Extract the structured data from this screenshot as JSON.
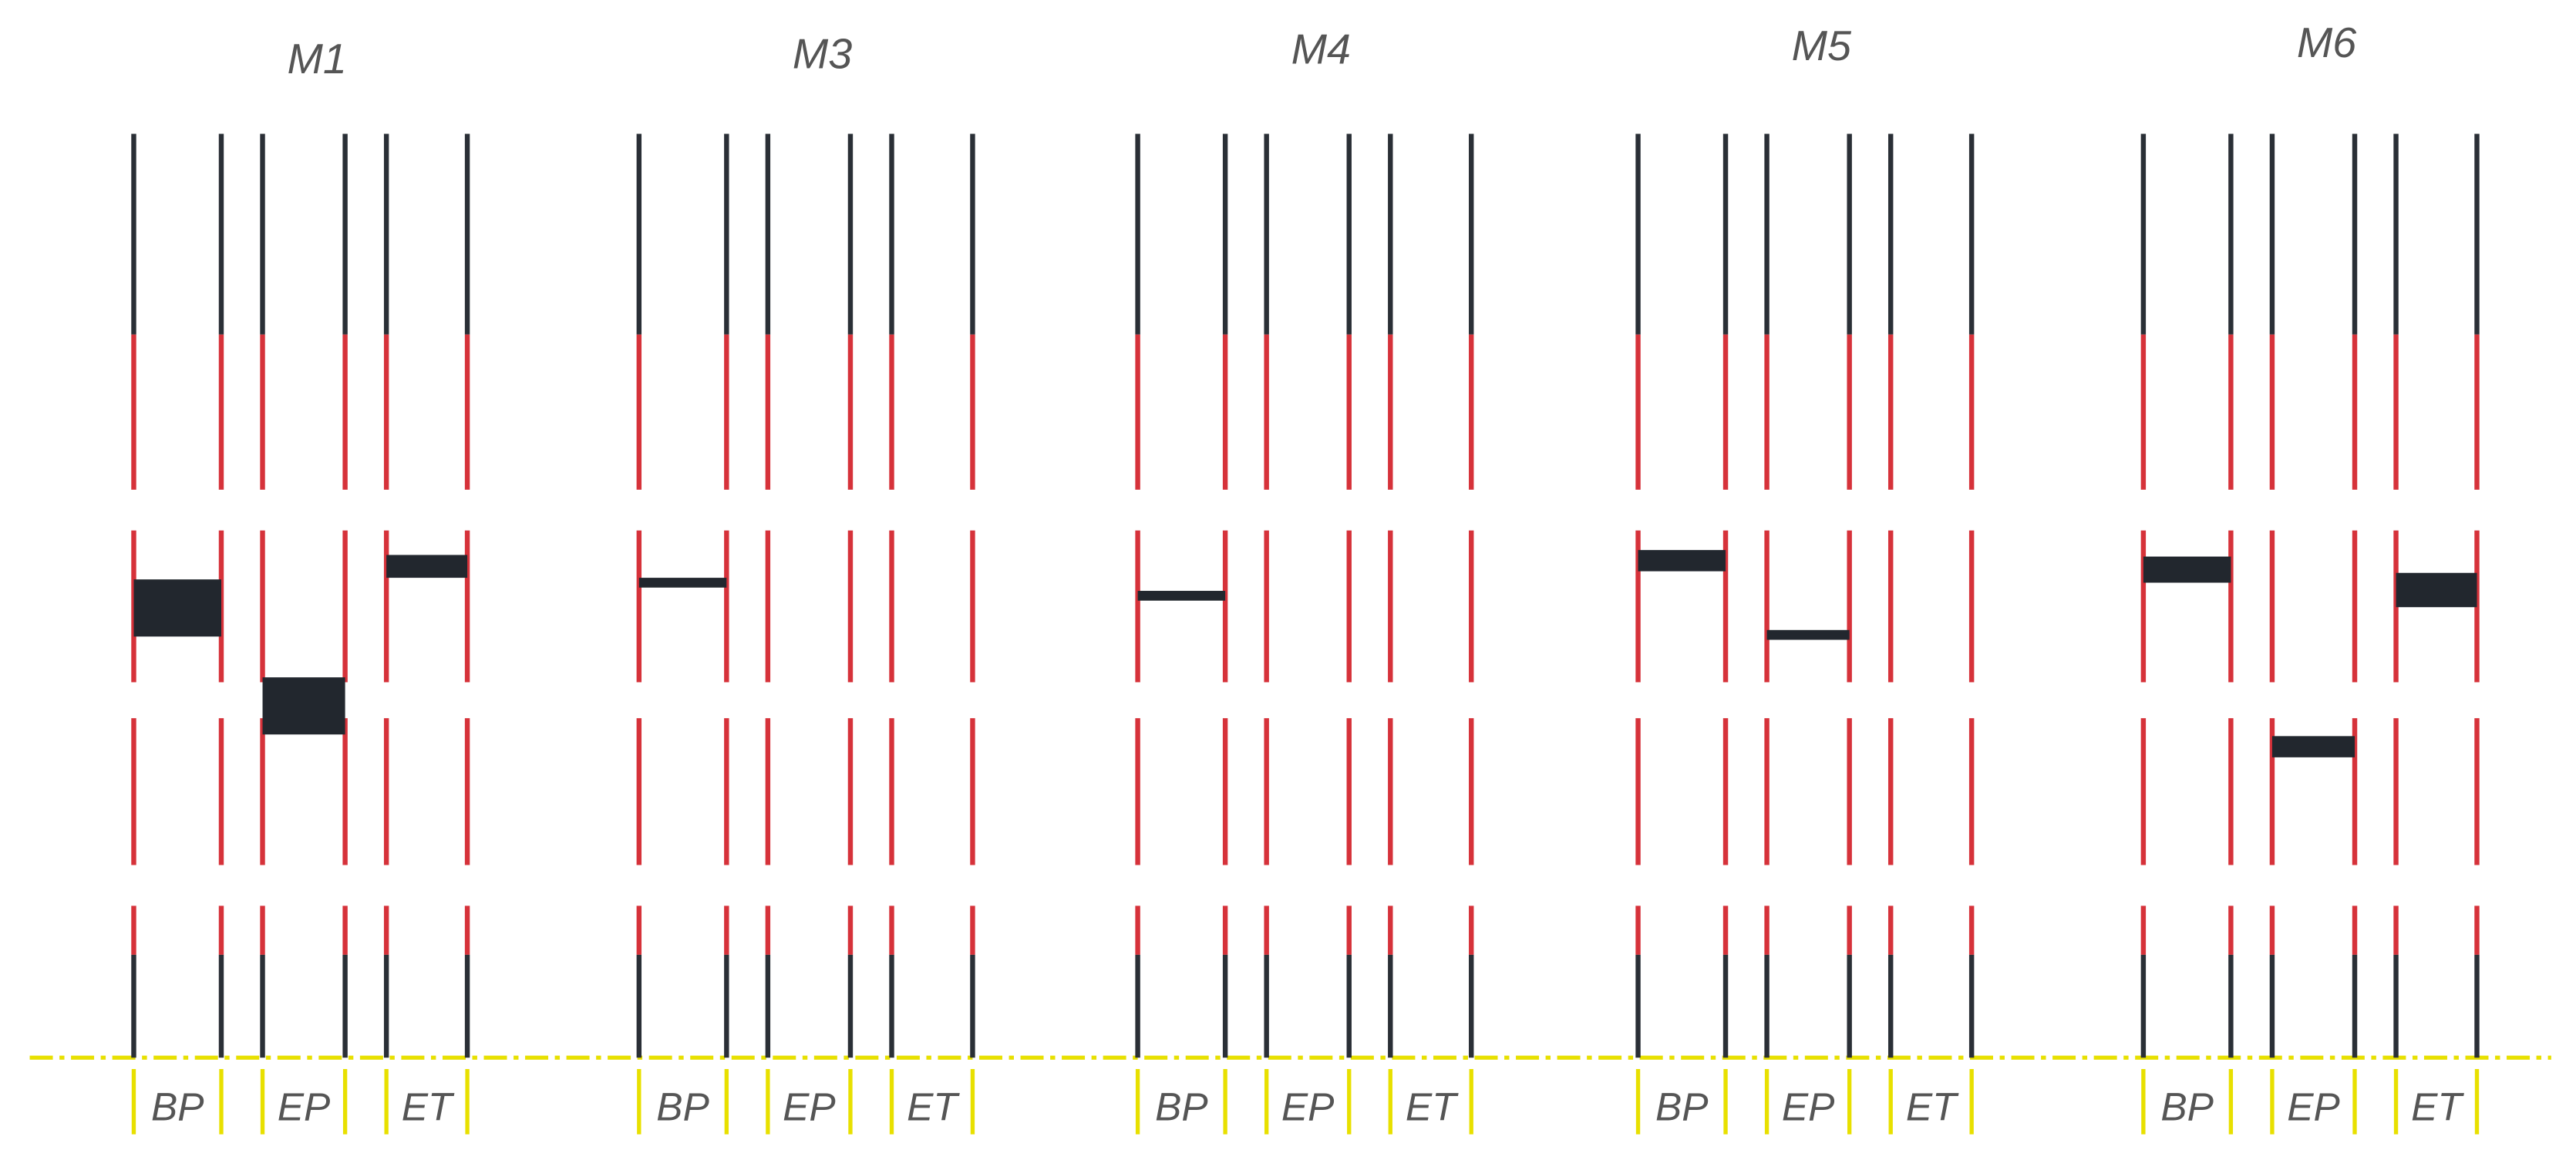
{
  "groups": [
    {
      "label": "M1",
      "columns": [
        "BP",
        "EP",
        "ET"
      ]
    },
    {
      "label": "M3",
      "columns": [
        "BP",
        "EP",
        "ET"
      ]
    },
    {
      "label": "M4",
      "columns": [
        "BP",
        "EP",
        "ET"
      ]
    },
    {
      "label": "M5",
      "columns": [
        "BP",
        "EP",
        "ET"
      ]
    },
    {
      "label": "M6",
      "columns": [
        "BP",
        "EP",
        "ET"
      ]
    }
  ]
}
